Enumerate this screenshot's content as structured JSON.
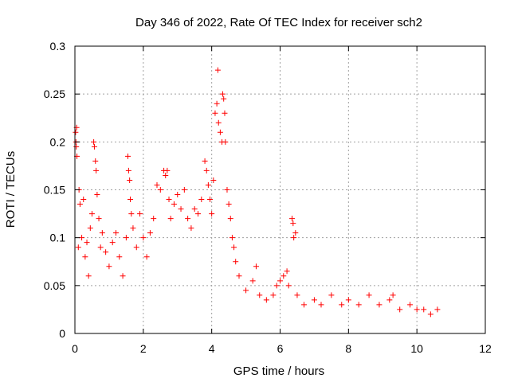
{
  "chart_data": {
    "type": "scatter",
    "title": "Day 346 of 2022, Rate Of TEC Index for receiver sch2",
    "xlabel": "GPS time / hours",
    "ylabel": "ROTI / TECUs",
    "xlim": [
      0,
      12
    ],
    "ylim": [
      0,
      0.3
    ],
    "x_ticks": [
      0,
      2,
      4,
      6,
      8,
      10,
      12
    ],
    "y_ticks": [
      0,
      0.05,
      0.1,
      0.15,
      0.2,
      0.25,
      0.3
    ],
    "x_tick_labels": [
      "0",
      "2",
      "4",
      "6",
      "8",
      "10",
      "12"
    ],
    "y_tick_labels": [
      "0",
      "0.05",
      "0.1",
      "0.15",
      "0.2",
      "0.25",
      "0.3"
    ],
    "grid": true,
    "marker": "+",
    "marker_color": "#ff0000",
    "series": [
      {
        "name": "ROTI",
        "points": [
          [
            0.02,
            0.21
          ],
          [
            0.03,
            0.2
          ],
          [
            0.04,
            0.195
          ],
          [
            0.05,
            0.215
          ],
          [
            0.06,
            0.185
          ],
          [
            0.1,
            0.09
          ],
          [
            0.12,
            0.15
          ],
          [
            0.15,
            0.135
          ],
          [
            0.2,
            0.1
          ],
          [
            0.25,
            0.14
          ],
          [
            0.3,
            0.08
          ],
          [
            0.35,
            0.095
          ],
          [
            0.4,
            0.06
          ],
          [
            0.45,
            0.11
          ],
          [
            0.5,
            0.125
          ],
          [
            0.55,
            0.2
          ],
          [
            0.57,
            0.195
          ],
          [
            0.6,
            0.18
          ],
          [
            0.62,
            0.17
          ],
          [
            0.65,
            0.145
          ],
          [
            0.7,
            0.12
          ],
          [
            0.75,
            0.09
          ],
          [
            0.8,
            0.105
          ],
          [
            0.9,
            0.085
          ],
          [
            1.0,
            0.07
          ],
          [
            1.1,
            0.095
          ],
          [
            1.2,
            0.105
          ],
          [
            1.3,
            0.08
          ],
          [
            1.4,
            0.06
          ],
          [
            1.5,
            0.1
          ],
          [
            1.55,
            0.185
          ],
          [
            1.57,
            0.17
          ],
          [
            1.6,
            0.16
          ],
          [
            1.62,
            0.14
          ],
          [
            1.65,
            0.125
          ],
          [
            1.7,
            0.11
          ],
          [
            1.8,
            0.09
          ],
          [
            1.9,
            0.125
          ],
          [
            2.0,
            0.1
          ],
          [
            2.1,
            0.08
          ],
          [
            2.2,
            0.105
          ],
          [
            2.3,
            0.12
          ],
          [
            2.4,
            0.155
          ],
          [
            2.5,
            0.15
          ],
          [
            2.6,
            0.17
          ],
          [
            2.65,
            0.165
          ],
          [
            2.7,
            0.17
          ],
          [
            2.75,
            0.14
          ],
          [
            2.8,
            0.12
          ],
          [
            2.9,
            0.135
          ],
          [
            3.0,
            0.145
          ],
          [
            3.1,
            0.13
          ],
          [
            3.2,
            0.15
          ],
          [
            3.3,
            0.12
          ],
          [
            3.4,
            0.11
          ],
          [
            3.5,
            0.13
          ],
          [
            3.6,
            0.125
          ],
          [
            3.7,
            0.14
          ],
          [
            3.8,
            0.18
          ],
          [
            3.85,
            0.17
          ],
          [
            3.9,
            0.155
          ],
          [
            3.95,
            0.14
          ],
          [
            4.0,
            0.125
          ],
          [
            4.05,
            0.16
          ],
          [
            4.1,
            0.23
          ],
          [
            4.15,
            0.24
          ],
          [
            4.18,
            0.275
          ],
          [
            4.2,
            0.22
          ],
          [
            4.25,
            0.21
          ],
          [
            4.3,
            0.2
          ],
          [
            4.32,
            0.25
          ],
          [
            4.35,
            0.245
          ],
          [
            4.38,
            0.23
          ],
          [
            4.4,
            0.2
          ],
          [
            4.45,
            0.15
          ],
          [
            4.5,
            0.135
          ],
          [
            4.55,
            0.12
          ],
          [
            4.6,
            0.1
          ],
          [
            4.65,
            0.09
          ],
          [
            4.7,
            0.075
          ],
          [
            4.8,
            0.06
          ],
          [
            5.0,
            0.045
          ],
          [
            5.2,
            0.055
          ],
          [
            5.3,
            0.07
          ],
          [
            5.4,
            0.04
          ],
          [
            5.6,
            0.035
          ],
          [
            5.8,
            0.04
          ],
          [
            5.9,
            0.05
          ],
          [
            6.0,
            0.055
          ],
          [
            6.1,
            0.06
          ],
          [
            6.2,
            0.065
          ],
          [
            6.25,
            0.05
          ],
          [
            6.35,
            0.12
          ],
          [
            6.38,
            0.115
          ],
          [
            6.4,
            0.1
          ],
          [
            6.45,
            0.105
          ],
          [
            6.5,
            0.04
          ],
          [
            6.7,
            0.03
          ],
          [
            7.0,
            0.035
          ],
          [
            7.2,
            0.03
          ],
          [
            7.5,
            0.04
          ],
          [
            7.8,
            0.03
          ],
          [
            8.0,
            0.035
          ],
          [
            8.3,
            0.03
          ],
          [
            8.6,
            0.04
          ],
          [
            8.9,
            0.03
          ],
          [
            9.2,
            0.035
          ],
          [
            9.3,
            0.04
          ],
          [
            9.5,
            0.025
          ],
          [
            9.8,
            0.03
          ],
          [
            10.0,
            0.025
          ],
          [
            10.2,
            0.025
          ],
          [
            10.4,
            0.02
          ],
          [
            10.6,
            0.025
          ]
        ]
      }
    ]
  }
}
